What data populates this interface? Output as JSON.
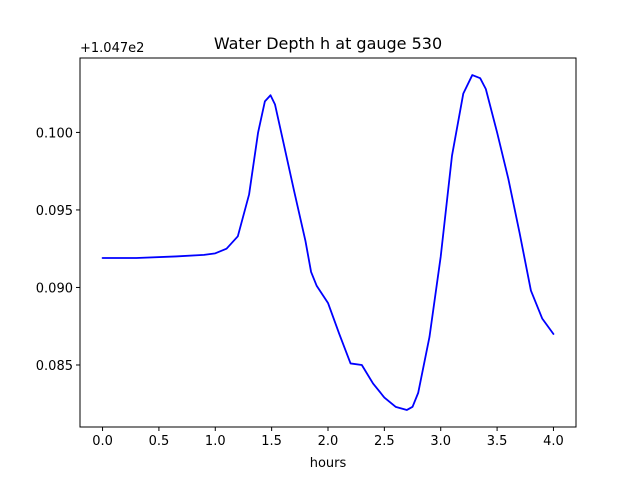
{
  "chart_data": {
    "type": "line",
    "title": "Water Depth h at gauge 530",
    "xlabel": "hours",
    "ylabel": "",
    "y_offset_label": "+1.047e2",
    "xlim": [
      -0.2,
      4.2
    ],
    "ylim": [
      0.081,
      0.1048
    ],
    "xticks": [
      0.0,
      0.5,
      1.0,
      1.5,
      2.0,
      2.5,
      3.0,
      3.5,
      4.0
    ],
    "xtick_labels": [
      "0.0",
      "0.5",
      "1.0",
      "1.5",
      "2.0",
      "2.5",
      "3.0",
      "3.5",
      "4.0"
    ],
    "yticks": [
      0.085,
      0.09,
      0.095,
      0.1
    ],
    "ytick_labels": [
      "0.085",
      "0.090",
      "0.095",
      "0.100"
    ],
    "grid": false,
    "line_color": "#0000ff",
    "series": [
      {
        "x": [
          0.0,
          0.3,
          0.65,
          0.9,
          1.0,
          1.1,
          1.2,
          1.3,
          1.38,
          1.44,
          1.49,
          1.53,
          1.6,
          1.7,
          1.8,
          1.85,
          1.9,
          2.0,
          2.1,
          2.2,
          2.3,
          2.4,
          2.5,
          2.6,
          2.7,
          2.75,
          2.8,
          2.9,
          3.0,
          3.1,
          3.2,
          3.28,
          3.35,
          3.4,
          3.5,
          3.6,
          3.7,
          3.8,
          3.9,
          4.0
        ],
        "y": [
          0.0919,
          0.0919,
          0.092,
          0.0921,
          0.0922,
          0.0925,
          0.0933,
          0.096,
          0.1,
          0.102,
          0.1024,
          0.1018,
          0.0995,
          0.0962,
          0.093,
          0.091,
          0.0901,
          0.089,
          0.087,
          0.0851,
          0.085,
          0.0838,
          0.0829,
          0.0823,
          0.0821,
          0.0823,
          0.0832,
          0.0868,
          0.092,
          0.0985,
          0.1025,
          0.1037,
          0.1035,
          0.1028,
          0.1,
          0.097,
          0.0935,
          0.0898,
          0.088,
          0.087
        ]
      }
    ]
  }
}
